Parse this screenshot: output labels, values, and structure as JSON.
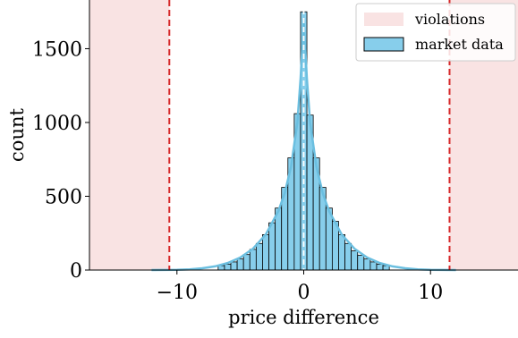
{
  "chart_data": {
    "type": "bar",
    "title": "",
    "xlabel": "price difference",
    "ylabel": "count",
    "xlim": [
      -16.9,
      16.9
    ],
    "ylim": [
      0,
      1830
    ],
    "xticks": [
      -10,
      0,
      10
    ],
    "xtick_labels": [
      "−10",
      "0",
      "10"
    ],
    "yticks": [
      0,
      500,
      1000,
      1500
    ],
    "ytick_labels": [
      "0",
      "500",
      "1000",
      "1500"
    ],
    "grid": false,
    "legend_position": "top-right",
    "bin_width": 0.5,
    "series": [
      {
        "name": "market data",
        "type": "histogram",
        "color": "#87ceeb",
        "bins": [
          {
            "x": -6.5,
            "count": 30
          },
          {
            "x": -6.0,
            "count": 40
          },
          {
            "x": -5.5,
            "count": 55
          },
          {
            "x": -5.0,
            "count": 75
          },
          {
            "x": -4.5,
            "count": 105
          },
          {
            "x": -4.0,
            "count": 140
          },
          {
            "x": -3.5,
            "count": 180
          },
          {
            "x": -3.0,
            "count": 240
          },
          {
            "x": -2.5,
            "count": 320
          },
          {
            "x": -2.0,
            "count": 420
          },
          {
            "x": -1.5,
            "count": 560
          },
          {
            "x": -1.0,
            "count": 760
          },
          {
            "x": -0.5,
            "count": 1060
          },
          {
            "x": 0.0,
            "count": 1750
          },
          {
            "x": 0.5,
            "count": 1050
          },
          {
            "x": 1.0,
            "count": 760
          },
          {
            "x": 1.5,
            "count": 560
          },
          {
            "x": 2.0,
            "count": 420
          },
          {
            "x": 2.5,
            "count": 330
          },
          {
            "x": 3.0,
            "count": 240
          },
          {
            "x": 3.5,
            "count": 180
          },
          {
            "x": 4.0,
            "count": 130
          },
          {
            "x": 4.5,
            "count": 100
          },
          {
            "x": 5.0,
            "count": 75
          },
          {
            "x": 5.5,
            "count": 55
          },
          {
            "x": 6.0,
            "count": 40
          },
          {
            "x": 6.5,
            "count": 30
          }
        ]
      },
      {
        "name": "kde",
        "type": "line",
        "color": "#6bbfe0",
        "points": [
          [
            -12,
            0
          ],
          [
            -10,
            2
          ],
          [
            -9,
            5
          ],
          [
            -8,
            12
          ],
          [
            -7,
            25
          ],
          [
            -6,
            48
          ],
          [
            -5,
            85
          ],
          [
            -4,
            145
          ],
          [
            -3,
            240
          ],
          [
            -2,
            400
          ],
          [
            -1.5,
            520
          ],
          [
            -1,
            700
          ],
          [
            -0.5,
            1000
          ],
          [
            -0.25,
            1300
          ],
          [
            0,
            1700
          ],
          [
            0.25,
            1300
          ],
          [
            0.5,
            1000
          ],
          [
            1,
            700
          ],
          [
            1.5,
            520
          ],
          [
            2,
            400
          ],
          [
            3,
            240
          ],
          [
            4,
            145
          ],
          [
            5,
            85
          ],
          [
            6,
            48
          ],
          [
            7,
            25
          ],
          [
            8,
            12
          ],
          [
            9,
            5
          ],
          [
            10,
            2
          ],
          [
            12,
            0
          ]
        ]
      }
    ],
    "violations": {
      "name": "violations",
      "color": "#f9e3e3",
      "left_threshold": -10.6,
      "right_threshold": 11.5,
      "threshold_color": "#d62728"
    },
    "median_line": {
      "x": 0,
      "color": "#ffffff"
    },
    "legend": [
      {
        "label": "violations",
        "style": "patch",
        "color": "#f9e3e3"
      },
      {
        "label": "market data",
        "style": "bar",
        "color": "#87ceeb"
      }
    ]
  }
}
